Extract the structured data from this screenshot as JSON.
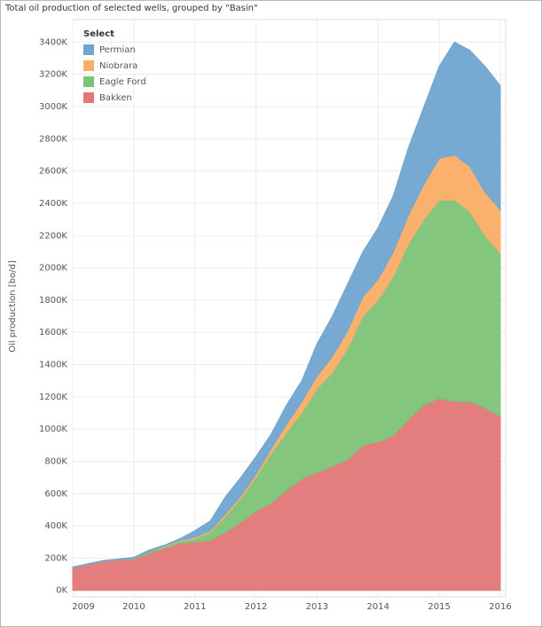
{
  "chart_data": {
    "type": "stacked_area",
    "title": "Total oil production of selected wells, grouped by \"Basin\"",
    "y_label": "Oil production [bo/d]",
    "legend_title": "Select",
    "x": [
      2009,
      2009.25,
      2009.5,
      2009.75,
      2010,
      2010.25,
      2010.5,
      2010.75,
      2011,
      2011.25,
      2011.5,
      2011.75,
      2012,
      2012.25,
      2012.5,
      2012.75,
      2013,
      2013.25,
      2013.5,
      2013.75,
      2014,
      2014.25,
      2014.5,
      2014.75,
      2015,
      2015.25,
      2015.5,
      2015.75,
      2016
    ],
    "series": [
      {
        "name": "Permian",
        "color": "#6fa5d0",
        "values": [
          5,
          5,
          5,
          5,
          5,
          10,
          5,
          10,
          40,
          60,
          105,
          115,
          110,
          90,
          120,
          130,
          200,
          250,
          290,
          280,
          320,
          350,
          420,
          480,
          570,
          700,
          720,
          780,
          770
        ]
      },
      {
        "name": "Niobrara",
        "color": "#fbad66",
        "values": [
          0,
          0,
          0,
          0,
          0,
          0,
          5,
          5,
          10,
          10,
          15,
          15,
          20,
          30,
          50,
          70,
          80,
          100,
          110,
          120,
          130,
          150,
          180,
          220,
          260,
          280,
          280,
          270,
          270
        ]
      },
      {
        "name": "Eagle Ford",
        "color": "#7dc377",
        "values": [
          0,
          0,
          0,
          0,
          5,
          10,
          10,
          15,
          20,
          50,
          100,
          150,
          210,
          310,
          360,
          410,
          520,
          580,
          690,
          800,
          880,
          990,
          1090,
          1150,
          1230,
          1250,
          1180,
          1070,
          1010
        ]
      },
      {
        "name": "Bakken",
        "color": "#e37676",
        "values": [
          140,
          160,
          180,
          190,
          195,
          230,
          260,
          290,
          300,
          310,
          360,
          420,
          490,
          540,
          620,
          690,
          730,
          770,
          810,
          900,
          920,
          960,
          1060,
          1150,
          1190,
          1170,
          1170,
          1130,
          1080
        ]
      }
    ],
    "xlim": [
      2009,
      2016
    ],
    "xticks": [
      2009,
      2010,
      2011,
      2012,
      2013,
      2014,
      2015,
      2016
    ],
    "ylim": [
      -40,
      3540
    ],
    "yticks": [
      {
        "value": 0,
        "label": "0K"
      },
      {
        "value": 200,
        "label": "200K"
      },
      {
        "value": 400,
        "label": "400K"
      },
      {
        "value": 600,
        "label": "600K"
      },
      {
        "value": 800,
        "label": "800K"
      },
      {
        "value": 1000,
        "label": "1000K"
      },
      {
        "value": 1200,
        "label": "1200K"
      },
      {
        "value": 1400,
        "label": "1400K"
      },
      {
        "value": 1600,
        "label": "1600K"
      },
      {
        "value": 1800,
        "label": "1800K"
      },
      {
        "value": 2000,
        "label": "2000K"
      },
      {
        "value": 2200,
        "label": "2200K"
      },
      {
        "value": 2400,
        "label": "2400K"
      },
      {
        "value": 2600,
        "label": "2600K"
      },
      {
        "value": 2800,
        "label": "2800K"
      },
      {
        "value": 3000,
        "label": "3000K"
      },
      {
        "value": 3200,
        "label": "3200K"
      },
      {
        "value": 3400,
        "label": "3400K"
      }
    ],
    "grid": true,
    "legend": "upper left"
  }
}
